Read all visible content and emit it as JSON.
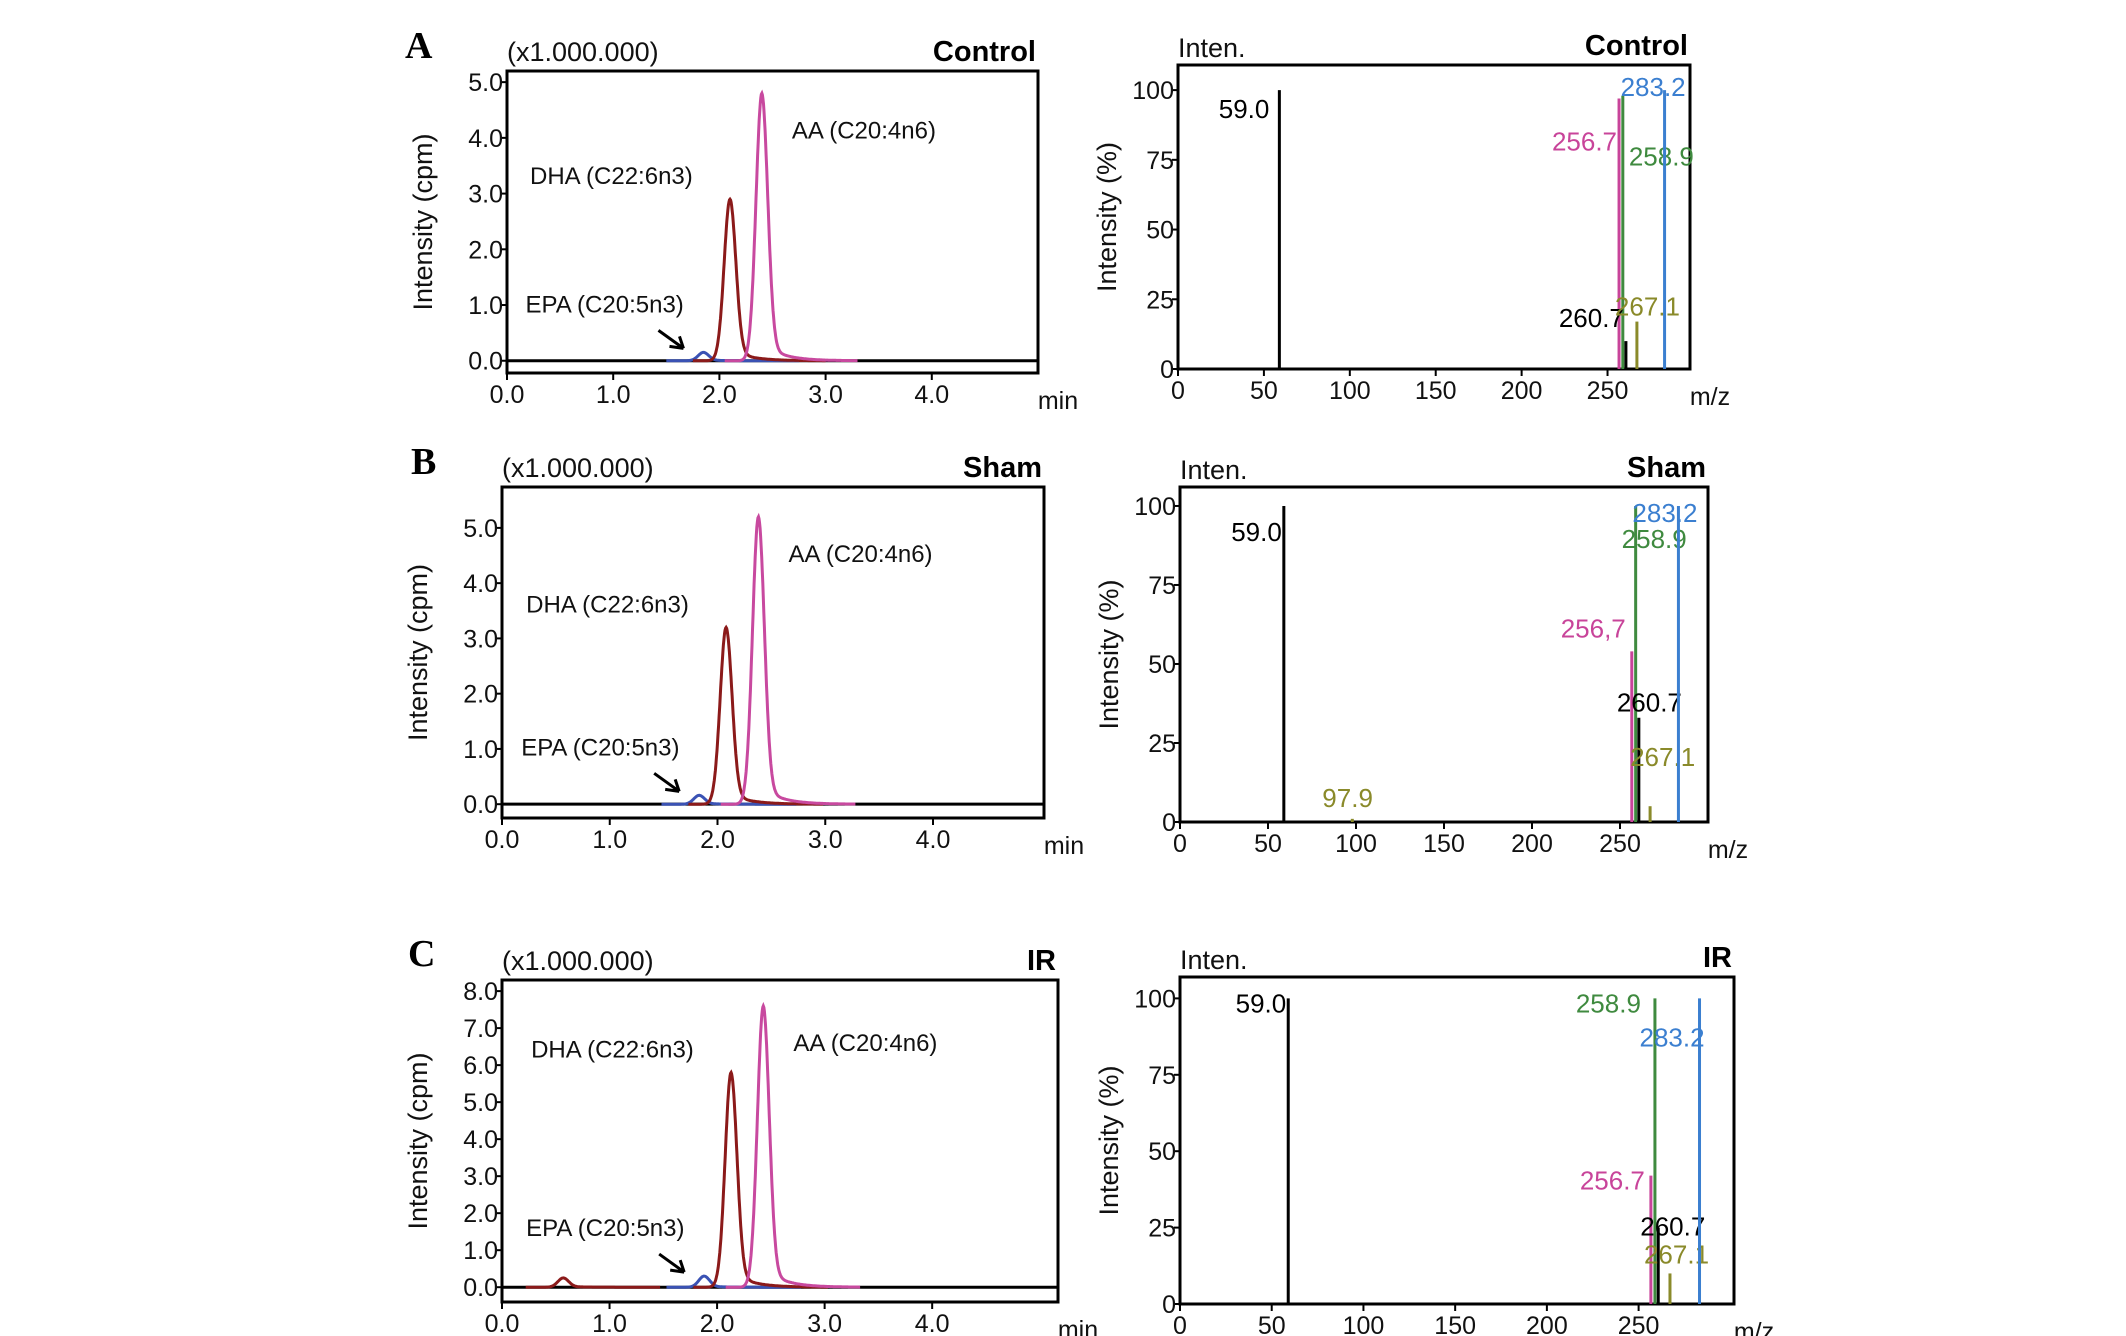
{
  "chart_data": [
    {
      "panel": "A",
      "type": "line",
      "title": "Control",
      "scale_note": "(x1.000.000)",
      "xlabel": "min",
      "ylabel": "Intensity (cpm)",
      "xlim": [
        0,
        5
      ],
      "ylim": [
        -0.22,
        5.2
      ],
      "xticks": [
        "0.0",
        "1.0",
        "2.0",
        "3.0",
        "4.0"
      ],
      "yticks": [
        "0.0",
        "1.0",
        "2.0",
        "3.0",
        "4.0",
        "5.0"
      ],
      "peaks": [
        {
          "label": "EPA (C20:5n3)",
          "rt": 1.85,
          "height": 0.15,
          "color": "#3a52b4"
        },
        {
          "label": "DHA (C22:6n3)",
          "rt": 2.1,
          "height": 2.9,
          "color": "#8b1a1a"
        },
        {
          "label": "AA (C20:4n6)",
          "rt": 2.4,
          "height": 4.8,
          "color": "#c8499f"
        }
      ]
    },
    {
      "panel": "A",
      "type": "bar",
      "title": "Control",
      "ylabel_top": "Inten.",
      "xlabel": "m/z",
      "ylabel": "Intensity (%)",
      "xlim": [
        0,
        298
      ],
      "ylim": [
        0,
        109
      ],
      "xticks": [
        "0",
        "50",
        "100",
        "150",
        "200",
        "250"
      ],
      "yticks": [
        "0",
        "25",
        "50",
        "75",
        "100"
      ],
      "ions": [
        {
          "label": "59.0",
          "mz": 59.0,
          "intensity": 100,
          "color": "#000000"
        },
        {
          "label": "256.7",
          "mz": 256.7,
          "intensity": 97,
          "color": "#c8449a"
        },
        {
          "label": "258.9",
          "mz": 258.9,
          "intensity": 98,
          "color": "#3f8a3f"
        },
        {
          "label": "260.7",
          "mz": 260.7,
          "intensity": 10,
          "color": "#000000"
        },
        {
          "label": "267.1",
          "mz": 267.1,
          "intensity": 17,
          "color": "#8a8a2a"
        },
        {
          "label": "283.2",
          "mz": 283.2,
          "intensity": 100,
          "color": "#3b7fd0"
        }
      ]
    },
    {
      "panel": "B",
      "type": "line",
      "title": "Sham",
      "scale_note": "(x1.000.000)",
      "xlabel": "min",
      "ylabel": "Intensity (cpm)",
      "xlim": [
        0,
        5.03
      ],
      "ylim": [
        -0.25,
        5.74
      ],
      "xticks": [
        "0.0",
        "1.0",
        "2.0",
        "3.0",
        "4.0"
      ],
      "yticks": [
        "0.0",
        "1.0",
        "2.0",
        "3.0",
        "4.0",
        "5.0"
      ],
      "peaks": [
        {
          "label": "EPA (C20:5n3)",
          "rt": 1.83,
          "height": 0.16,
          "color": "#3a52b4"
        },
        {
          "label": "DHA (C22:6n3)",
          "rt": 2.08,
          "height": 3.2,
          "color": "#8b1a1a"
        },
        {
          "label": "AA (C20:4n6)",
          "rt": 2.38,
          "height": 5.2,
          "color": "#c8499f"
        }
      ]
    },
    {
      "panel": "B",
      "type": "bar",
      "title": "Sham",
      "ylabel_top": "Inten.",
      "xlabel": "m/z",
      "ylabel": "Intensity (%)",
      "xlim": [
        0,
        300
      ],
      "ylim": [
        0,
        106
      ],
      "xticks": [
        "0",
        "50",
        "100",
        "150",
        "200",
        "250"
      ],
      "yticks": [
        "0",
        "25",
        "50",
        "75",
        "100"
      ],
      "ions": [
        {
          "label": "59.0",
          "mz": 59.0,
          "intensity": 100,
          "color": "#000000"
        },
        {
          "label": "97.9",
          "mz": 97.9,
          "intensity": 1,
          "color": "#8a8a2a"
        },
        {
          "label": "256,7",
          "mz": 256.7,
          "intensity": 54,
          "color": "#c8449a"
        },
        {
          "label": "258.9",
          "mz": 258.9,
          "intensity": 100,
          "color": "#3f8a3f"
        },
        {
          "label": "260.7",
          "mz": 260.7,
          "intensity": 33,
          "color": "#000000"
        },
        {
          "label": "267.1",
          "mz": 267.1,
          "intensity": 5,
          "color": "#8a8a2a"
        },
        {
          "label": "283.2",
          "mz": 283.2,
          "intensity": 100,
          "color": "#3b7fd0"
        }
      ]
    },
    {
      "panel": "C",
      "type": "line",
      "title": "IR",
      "scale_note": "(x1.000.000)",
      "xlabel": "min",
      "ylabel": "Intensity (cpm)",
      "xlim": [
        0,
        5.17
      ],
      "ylim": [
        -0.4,
        8.3
      ],
      "xticks": [
        "0.0",
        "1.0",
        "2.0",
        "3.0",
        "4.0"
      ],
      "yticks": [
        "0.0",
        "1.0",
        "2.0",
        "3.0",
        "4.0",
        "5.0",
        "6.0",
        "7.0",
        "8.0"
      ],
      "peaks": [
        {
          "label": "",
          "rt": 0.57,
          "height": 0.25,
          "color": "#8b1a1a"
        },
        {
          "label": "EPA (C20:5n3)",
          "rt": 1.88,
          "height": 0.3,
          "color": "#3a52b4"
        },
        {
          "label": "DHA (C22:6n3)",
          "rt": 2.13,
          "height": 5.8,
          "color": "#8b1a1a"
        },
        {
          "label": "AA (C20:4n6)",
          "rt": 2.43,
          "height": 7.6,
          "color": "#c8499f"
        }
      ]
    },
    {
      "panel": "C",
      "type": "bar",
      "title": "IR",
      "ylabel_top": "Inten.",
      "xlabel": "m/z",
      "ylabel": "Intensity (%)",
      "xlim": [
        0,
        302
      ],
      "ylim": [
        0,
        107
      ],
      "xticks": [
        "0",
        "50",
        "100",
        "150",
        "200",
        "250"
      ],
      "yticks": [
        "0",
        "25",
        "50",
        "75",
        "100"
      ],
      "ions": [
        {
          "label": "59.0",
          "mz": 59.0,
          "intensity": 100,
          "color": "#000000"
        },
        {
          "label": "256.7",
          "mz": 256.7,
          "intensity": 42,
          "color": "#c8449a"
        },
        {
          "label": "258.9",
          "mz": 258.9,
          "intensity": 100,
          "color": "#3f8a3f"
        },
        {
          "label": "260.7",
          "mz": 260.7,
          "intensity": 25,
          "color": "#000000"
        },
        {
          "label": "267.1",
          "mz": 267.1,
          "intensity": 10,
          "color": "#8a8a2a"
        },
        {
          "label": "283.2",
          "mz": 283.2,
          "intensity": 100,
          "color": "#3b7fd0"
        }
      ]
    }
  ]
}
